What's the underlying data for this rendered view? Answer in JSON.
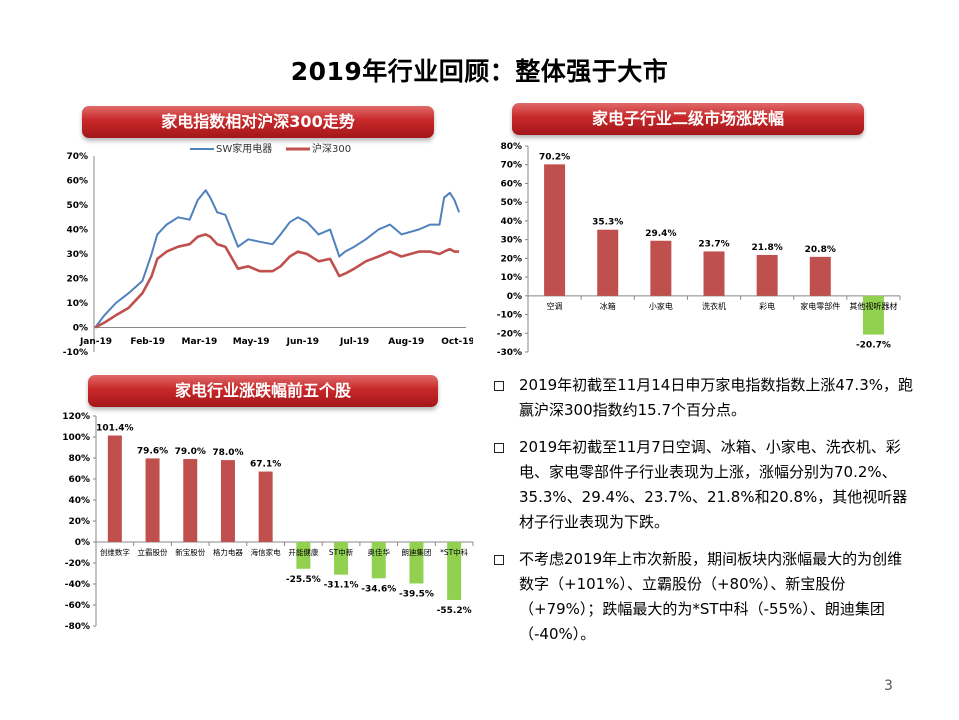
{
  "title": "2019年行业回顾：整体强于大市",
  "page_number": "3",
  "colors": {
    "banner": "#c0262b",
    "bar_up": "#c0504d",
    "bar_down": "#92d050",
    "line_sw": "#4f81bd",
    "line_hs300": "#c0504d"
  },
  "bullets": [
    "2019年初截至11月14日申万家电指数指数上涨47.3%，跑赢沪深300指数约15.7个百分点。",
    "2019年初截至11月7日空调、冰箱、小家电、洗衣机、彩电、家电零部件子行业表现为上涨，涨幅分别为70.2%、35.3%、29.4%、23.7%、21.8%和20.8%，其他视听器材子行业表现为下跌。",
    "不考虑2019年上市次新股，期间板块内涨幅最大的为创维数字（+101%）、立霸股份（+80%）、新宝股份（+79%）；跌幅最大的为*ST中科（-55%）、朗迪集团（-40%）。"
  ],
  "chart_data": [
    {
      "type": "line",
      "title": "家电指数相对沪深300走势",
      "xlabel": "",
      "ylabel": "",
      "ylim": [
        -10,
        70
      ],
      "yticks": [
        "-10%",
        "0%",
        "10%",
        "20%",
        "30%",
        "40%",
        "50%",
        "60%",
        "70%"
      ],
      "xticks": [
        "Jan-19",
        "Feb-19",
        "Mar-19",
        "May-19",
        "Jun-19",
        "Jul-19",
        "Aug-19",
        "Oct-19"
      ],
      "legend_position": "top",
      "series": [
        {
          "name": "SW家用电器",
          "color": "#4f81bd",
          "x": [
            "2019-01-02",
            "2019-01-10",
            "2019-01-20",
            "2019-01-31",
            "2019-02-12",
            "2019-02-20",
            "2019-02-25",
            "2019-03-05",
            "2019-03-15",
            "2019-03-25",
            "2019-04-01",
            "2019-04-08",
            "2019-04-12",
            "2019-04-18",
            "2019-04-25",
            "2019-05-06",
            "2019-05-15",
            "2019-05-25",
            "2019-06-05",
            "2019-06-12",
            "2019-06-20",
            "2019-06-27",
            "2019-07-05",
            "2019-07-15",
            "2019-07-25",
            "2019-08-02",
            "2019-08-07",
            "2019-08-15",
            "2019-08-25",
            "2019-09-05",
            "2019-09-15",
            "2019-09-25",
            "2019-10-10",
            "2019-10-20",
            "2019-10-28",
            "2019-11-01",
            "2019-11-06",
            "2019-11-10",
            "2019-11-14"
          ],
          "values": [
            0,
            5,
            10,
            14,
            19,
            30,
            38,
            42,
            45,
            44,
            52,
            56,
            53,
            47,
            46,
            33,
            36,
            35,
            34,
            38,
            43,
            45,
            43,
            38,
            40,
            29,
            31,
            33,
            36,
            40,
            42,
            38,
            40,
            42,
            42,
            53,
            55,
            52,
            47
          ]
        },
        {
          "name": "沪深300",
          "color": "#c0504d",
          "x": [
            "2019-01-02",
            "2019-01-10",
            "2019-01-20",
            "2019-01-31",
            "2019-02-12",
            "2019-02-20",
            "2019-02-25",
            "2019-03-05",
            "2019-03-15",
            "2019-03-25",
            "2019-04-01",
            "2019-04-08",
            "2019-04-12",
            "2019-04-18",
            "2019-04-25",
            "2019-05-06",
            "2019-05-15",
            "2019-05-25",
            "2019-06-05",
            "2019-06-12",
            "2019-06-20",
            "2019-06-27",
            "2019-07-05",
            "2019-07-15",
            "2019-07-25",
            "2019-08-02",
            "2019-08-07",
            "2019-08-15",
            "2019-08-25",
            "2019-09-05",
            "2019-09-15",
            "2019-09-25",
            "2019-10-10",
            "2019-10-20",
            "2019-10-28",
            "2019-11-01",
            "2019-11-06",
            "2019-11-10",
            "2019-11-14"
          ],
          "values": [
            0,
            2,
            5,
            8,
            14,
            21,
            28,
            31,
            33,
            34,
            37,
            38,
            37,
            34,
            33,
            24,
            25,
            23,
            23,
            25,
            29,
            31,
            30,
            27,
            28,
            21,
            22,
            24,
            27,
            29,
            31,
            29,
            31,
            31,
            30,
            31,
            32,
            31,
            31
          ]
        }
      ]
    },
    {
      "type": "bar",
      "title": "家电子行业二级市场涨跌幅",
      "ylim": [
        -30,
        80
      ],
      "yticks": [
        "-30%",
        "-20%",
        "-10%",
        "0%",
        "10%",
        "20%",
        "30%",
        "40%",
        "50%",
        "60%",
        "70%",
        "80%"
      ],
      "categories": [
        "空调",
        "冰箱",
        "小家电",
        "洗衣机",
        "彩电",
        "家电零部件",
        "其他视听器材"
      ],
      "values": [
        70.2,
        35.3,
        29.4,
        23.7,
        21.8,
        20.8,
        -20.7
      ],
      "data_labels": [
        "70.2%",
        "35.3%",
        "29.4%",
        "23.7%",
        "21.8%",
        "20.8%",
        "-20.7%"
      ]
    },
    {
      "type": "bar",
      "title": "家电行业涨跌幅前五个股",
      "ylim": [
        -80,
        120
      ],
      "yticks": [
        "-80%",
        "-60%",
        "-40%",
        "-20%",
        "0%",
        "20%",
        "40%",
        "60%",
        "80%",
        "100%",
        "120%"
      ],
      "categories": [
        "创维数字",
        "立霸股份",
        "新宝股份",
        "格力电器",
        "海信家电",
        "开能健康",
        "ST中新",
        "奥佳华",
        "朗迪集团",
        "*ST中科"
      ],
      "values": [
        101.4,
        79.6,
        79.0,
        78.0,
        67.1,
        -25.5,
        -31.1,
        -34.6,
        -39.5,
        -55.2
      ],
      "data_labels": [
        "101.4%",
        "79.6%",
        "79.0%",
        "78.0%",
        "67.1%",
        "-25.5%",
        "-31.1%",
        "-34.6%",
        "-39.5%",
        "-55.2%"
      ]
    }
  ]
}
